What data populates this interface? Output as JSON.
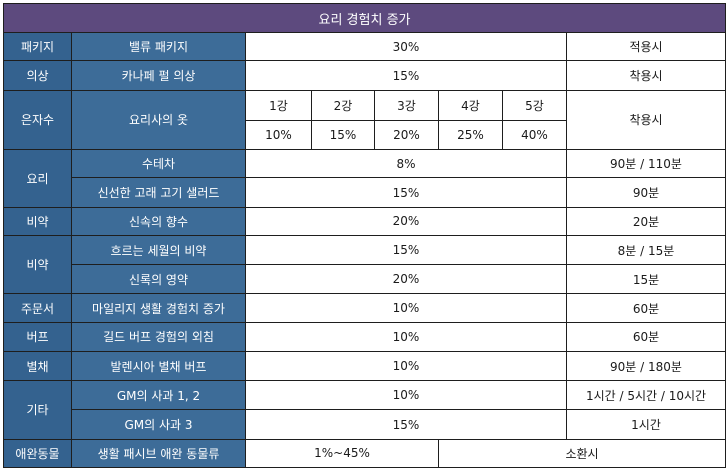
{
  "title": "요리 경험치 증가",
  "rows": [
    {
      "cat": "패키지",
      "item": "밸류 패키지",
      "value": "30%",
      "note": "적용시"
    },
    {
      "cat": "의상",
      "item": "카나페 펄 의상",
      "value": "15%",
      "note": "착용시"
    },
    {
      "cat": "은자수",
      "item": "요리사의 옷",
      "levels": [
        "1강",
        "2강",
        "3강",
        "4강",
        "5강"
      ],
      "level_values": [
        "10%",
        "15%",
        "20%",
        "25%",
        "40%"
      ],
      "note": "착용시"
    },
    {
      "cat": "요리",
      "item": "수테차",
      "value": "8%",
      "note": "90분 / 110분"
    },
    {
      "cat": "",
      "item": "신선한 고래 고기 샐러드",
      "value": "15%",
      "note": "90분"
    },
    {
      "cat": "비약",
      "item": "신속의 향수",
      "value": "20%",
      "note": "20분"
    },
    {
      "cat": "비약",
      "item": "흐르는 세월의 비약",
      "value": "15%",
      "note": "8분 / 15분"
    },
    {
      "cat": "",
      "item": "신록의 영약",
      "value": "20%",
      "note": "15분"
    },
    {
      "cat": "주문서",
      "item": "마일리지 생활 경험치 증가",
      "value": "10%",
      "note": "60분"
    },
    {
      "cat": "버프",
      "item": "길드 버프 경험의 외침",
      "value": "10%",
      "note": "60분"
    },
    {
      "cat": "별채",
      "item": "발렌시아 별채 버프",
      "value": "10%",
      "note": "90분 / 180분"
    },
    {
      "cat": "기타",
      "item": "GM의 사과 1, 2",
      "value": "10%",
      "note": "1시간 / 5시간 / 10시간"
    },
    {
      "cat": "",
      "item": "GM의 사과 3",
      "value": "15%",
      "note": "1시간"
    },
    {
      "cat": "애완동물",
      "item": "생활 패시브 애완 동물류",
      "value": "1%~45%",
      "note": "소환시"
    }
  ]
}
